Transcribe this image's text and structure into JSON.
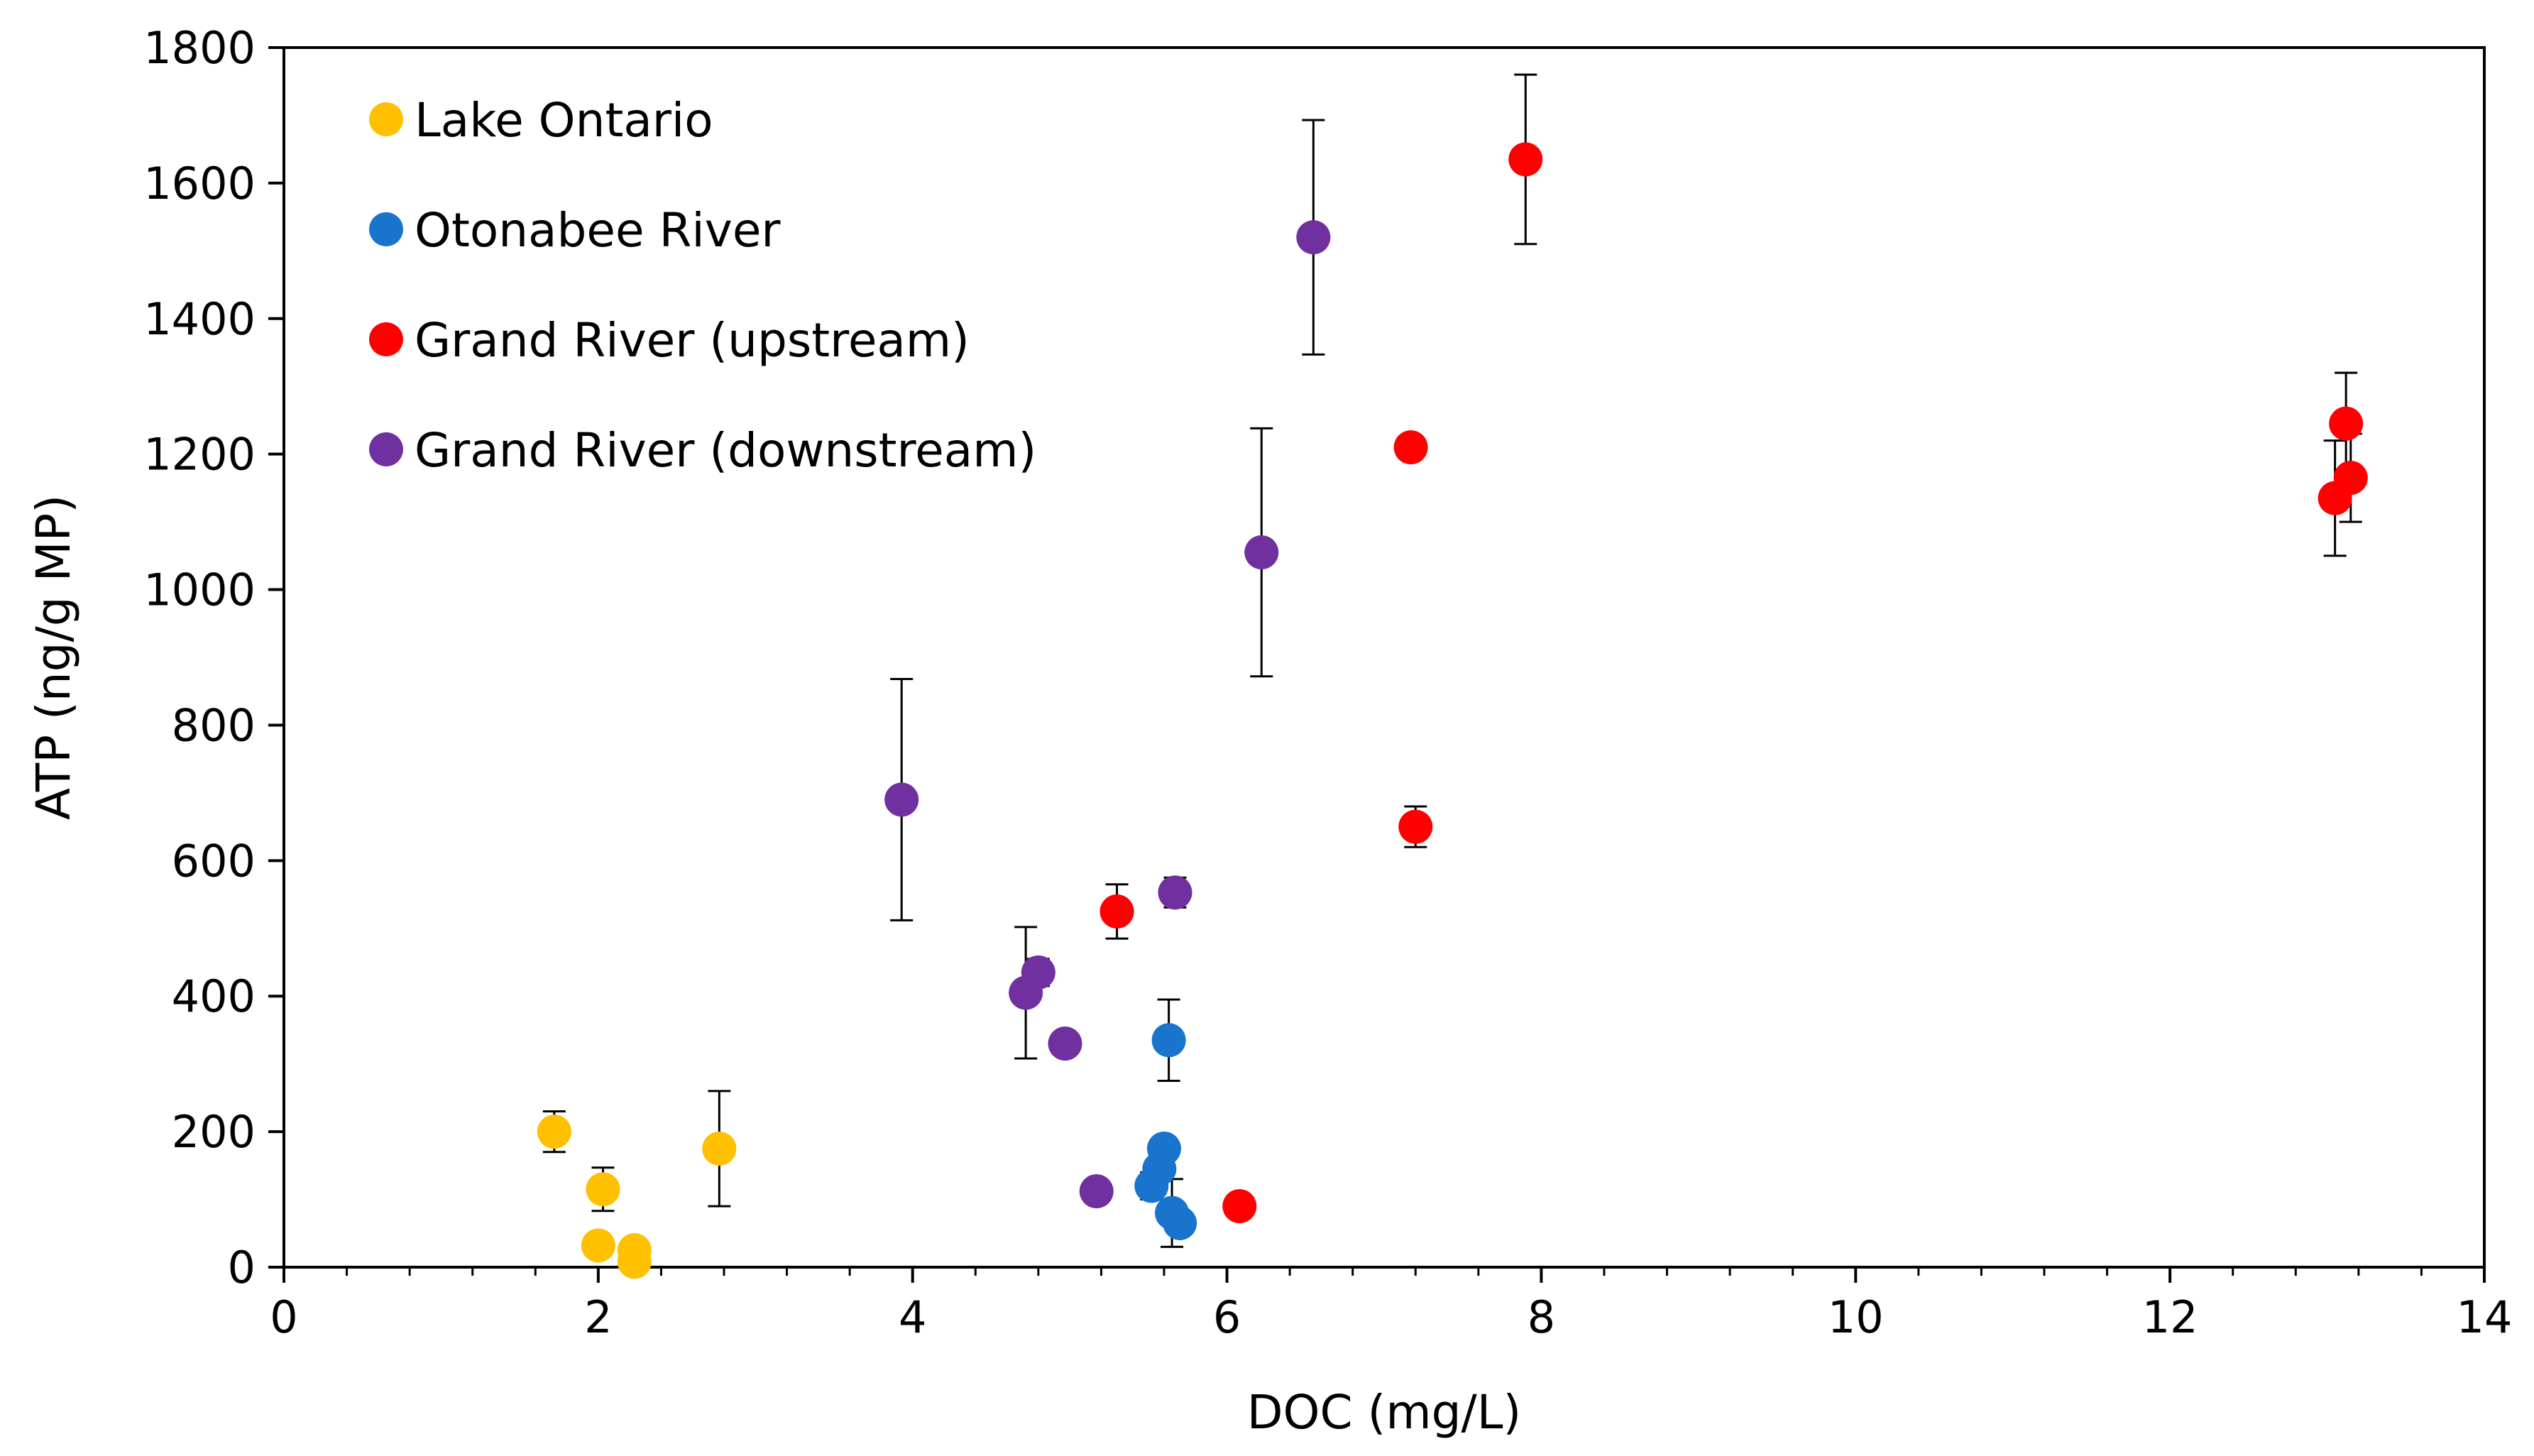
{
  "chart_data": {
    "type": "scatter",
    "title": "",
    "xlabel": "DOC (mg/L)",
    "ylabel": "ATP (ng/g MP)",
    "xlim": [
      0,
      14
    ],
    "ylim": [
      0,
      1800
    ],
    "x_ticks": [
      0,
      2,
      4,
      6,
      8,
      10,
      12,
      14
    ],
    "y_ticks": [
      0,
      200,
      400,
      600,
      800,
      1000,
      1200,
      1400,
      1600,
      1800
    ],
    "grid": false,
    "legend_position": "top-left",
    "series": [
      {
        "name": "Lake Ontario",
        "color": "#FFC000",
        "points": [
          {
            "x": 1.72,
            "y": 200,
            "err": 30
          },
          {
            "x": 2.03,
            "y": 115,
            "err": 32
          },
          {
            "x": 2.0,
            "y": 32,
            "err": 0
          },
          {
            "x": 2.23,
            "y": 25,
            "err": 0
          },
          {
            "x": 2.23,
            "y": 8,
            "err": 0
          },
          {
            "x": 2.77,
            "y": 175,
            "err": 85
          }
        ]
      },
      {
        "name": "Otonabee River",
        "color": "#1874CD",
        "points": [
          {
            "x": 5.52,
            "y": 120,
            "err": 20
          },
          {
            "x": 5.57,
            "y": 145,
            "err": 0
          },
          {
            "x": 5.6,
            "y": 175,
            "err": 0
          },
          {
            "x": 5.63,
            "y": 335,
            "err": 60
          },
          {
            "x": 5.65,
            "y": 80,
            "err": 50
          },
          {
            "x": 5.7,
            "y": 65,
            "err": 0
          }
        ]
      },
      {
        "name": "Grand River (upstream)",
        "color": "#FF0000",
        "points": [
          {
            "x": 5.3,
            "y": 525,
            "err": 40
          },
          {
            "x": 6.08,
            "y": 90,
            "err": 0
          },
          {
            "x": 7.17,
            "y": 1210,
            "err": 0
          },
          {
            "x": 7.2,
            "y": 650,
            "err": 30
          },
          {
            "x": 7.9,
            "y": 1635,
            "err": 125
          },
          {
            "x": 13.05,
            "y": 1135,
            "err": 85
          },
          {
            "x": 13.12,
            "y": 1245,
            "err": 75
          },
          {
            "x": 13.15,
            "y": 1165,
            "err": 65
          }
        ]
      },
      {
        "name": "Grand River (downstream)",
        "color": "#7030A0",
        "points": [
          {
            "x": 3.93,
            "y": 690,
            "err": 178
          },
          {
            "x": 4.72,
            "y": 405,
            "err": 97
          },
          {
            "x": 4.8,
            "y": 435,
            "err": 20
          },
          {
            "x": 4.97,
            "y": 330,
            "err": 0
          },
          {
            "x": 5.17,
            "y": 112,
            "err": 0
          },
          {
            "x": 5.67,
            "y": 553,
            "err": 22
          },
          {
            "x": 6.22,
            "y": 1055,
            "err": 183
          },
          {
            "x": 6.55,
            "y": 1520,
            "err": 173
          }
        ]
      }
    ]
  }
}
